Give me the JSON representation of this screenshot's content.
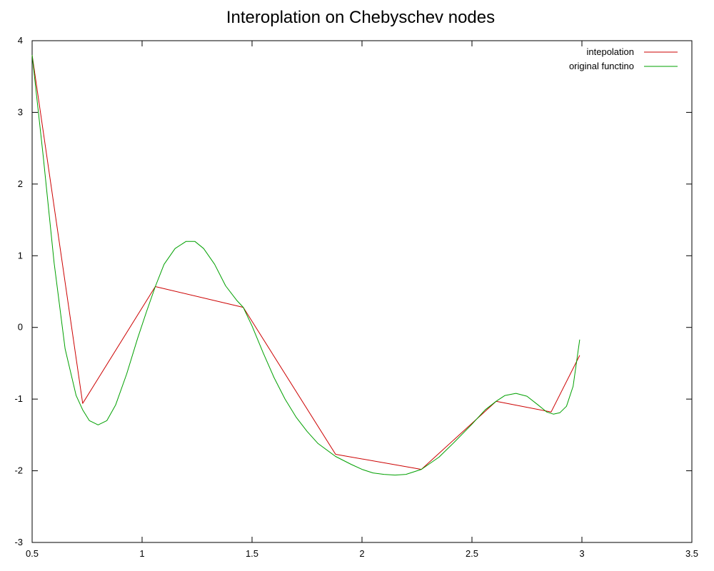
{
  "chart_data": {
    "type": "line",
    "title": "Interoplation on Chebyschev nodes",
    "xlabel": "",
    "ylabel": "",
    "xlim": [
      0.5,
      3.5
    ],
    "ylim": [
      -3,
      4
    ],
    "x_ticks": [
      0.5,
      1,
      1.5,
      2,
      2.5,
      3,
      3.5
    ],
    "x_tick_labels": [
      "0.5",
      "1",
      "1.5",
      "2",
      "2.5",
      "3",
      "3.5"
    ],
    "y_ticks": [
      -3,
      -2,
      -1,
      0,
      1,
      2,
      3,
      4
    ],
    "y_tick_labels": [
      "-3",
      "-2",
      "-1",
      "0",
      "1",
      "2",
      "3",
      "4"
    ],
    "grid": false,
    "legend_position": "top-right",
    "series": [
      {
        "name": "intepolation",
        "color": "#cc0000",
        "x": [
          0.5,
          0.73,
          1.06,
          1.46,
          1.88,
          2.27,
          2.61,
          2.86,
          2.99
        ],
        "y": [
          3.8,
          -1.06,
          0.57,
          0.28,
          -1.77,
          -1.98,
          -1.03,
          -1.18,
          -0.39
        ]
      },
      {
        "name": "original functino",
        "color": "#00a000",
        "x": [
          0.5,
          0.55,
          0.6,
          0.65,
          0.7,
          0.73,
          0.76,
          0.8,
          0.84,
          0.88,
          0.93,
          0.98,
          1.02,
          1.06,
          1.1,
          1.15,
          1.2,
          1.24,
          1.28,
          1.33,
          1.38,
          1.43,
          1.46,
          1.5,
          1.55,
          1.6,
          1.65,
          1.7,
          1.75,
          1.8,
          1.88,
          1.95,
          2.0,
          2.05,
          2.1,
          2.15,
          2.2,
          2.27,
          2.35,
          2.42,
          2.5,
          2.56,
          2.61,
          2.65,
          2.7,
          2.75,
          2.8,
          2.84,
          2.87,
          2.9,
          2.93,
          2.96,
          2.99
        ],
        "y": [
          3.8,
          2.4,
          0.9,
          -0.3,
          -0.95,
          -1.15,
          -1.3,
          -1.36,
          -1.3,
          -1.08,
          -0.65,
          -0.15,
          0.22,
          0.57,
          0.88,
          1.1,
          1.2,
          1.2,
          1.1,
          0.88,
          0.58,
          0.38,
          0.28,
          0.02,
          -0.35,
          -0.7,
          -1.0,
          -1.25,
          -1.45,
          -1.62,
          -1.8,
          -1.91,
          -1.98,
          -2.03,
          -2.05,
          -2.06,
          -2.05,
          -1.98,
          -1.81,
          -1.6,
          -1.35,
          -1.15,
          -1.03,
          -0.95,
          -0.92,
          -0.96,
          -1.08,
          -1.18,
          -1.21,
          -1.19,
          -1.1,
          -0.82,
          -0.17
        ]
      }
    ]
  }
}
